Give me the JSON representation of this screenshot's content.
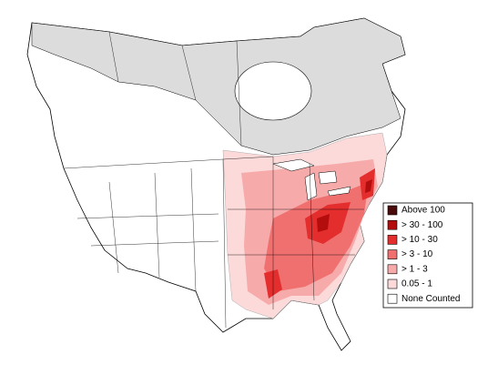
{
  "legend": {
    "items": [
      {
        "label": "Above 100",
        "color": "#4a0a0a"
      },
      {
        "label": "> 30 - 100",
        "color": "#b30d0d"
      },
      {
        "label": "> 10 - 30",
        "color": "#e42d2d"
      },
      {
        "label": "> 3 - 10",
        "color": "#f07070"
      },
      {
        "label": "> 1 - 3",
        "color": "#f7aaaa"
      },
      {
        "label": "0.05 - 1",
        "color": "#fcdada"
      },
      {
        "label": "None Counted",
        "color": "#ffffff"
      }
    ]
  }
}
